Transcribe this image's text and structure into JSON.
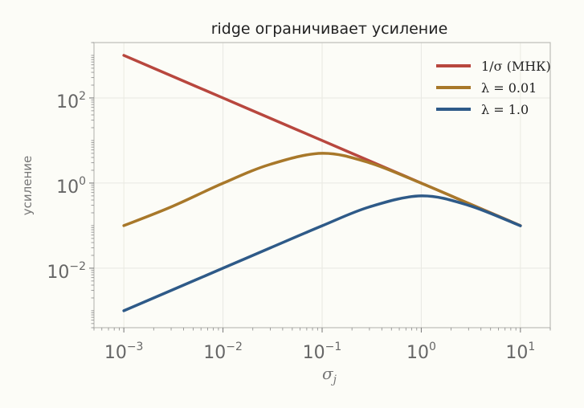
{
  "chart_data": {
    "type": "line",
    "title": "ridge ограничивает усиление",
    "xlabel": "σ_j",
    "ylabel": "усиление",
    "x_scale": "log",
    "y_scale": "log",
    "xlim": [
      0.0005,
      20
    ],
    "ylim": [
      0.0004,
      2000
    ],
    "grid": true,
    "legend_position": "top-right",
    "x_ticks": [
      {
        "base": "10",
        "exp": "−3",
        "value": 0.001
      },
      {
        "base": "10",
        "exp": "−2",
        "value": 0.01
      },
      {
        "base": "10",
        "exp": "−1",
        "value": 0.1
      },
      {
        "base": "10",
        "exp": "0",
        "value": 1
      },
      {
        "base": "10",
        "exp": "1",
        "value": 10
      }
    ],
    "y_ticks": [
      {
        "base": "10",
        "exp": "−2",
        "value": 0.01
      },
      {
        "base": "10",
        "exp": "0",
        "value": 1
      },
      {
        "base": "10",
        "exp": "2",
        "value": 100
      }
    ],
    "x": [
      0.001,
      0.003,
      0.01,
      0.03,
      0.1,
      0.3,
      1,
      3,
      10
    ],
    "series": [
      {
        "name": "1/σ (МНК)",
        "color": "#b8473e",
        "values": [
          1000,
          333.3,
          100,
          33.33,
          10,
          3.333,
          1,
          0.3333,
          0.1
        ]
      },
      {
        "name": "λ = 0.01",
        "color": "#a8782a",
        "values": [
          0.1,
          0.2752,
          0.9901,
          2.752,
          5.0,
          3.0,
          0.9901,
          0.333,
          0.1
        ]
      },
      {
        "name": "λ = 1.0",
        "color": "#2e5a88",
        "values": [
          0.001,
          0.003,
          0.01,
          0.03,
          0.099,
          0.2752,
          0.5,
          0.3,
          0.099
        ]
      }
    ]
  }
}
